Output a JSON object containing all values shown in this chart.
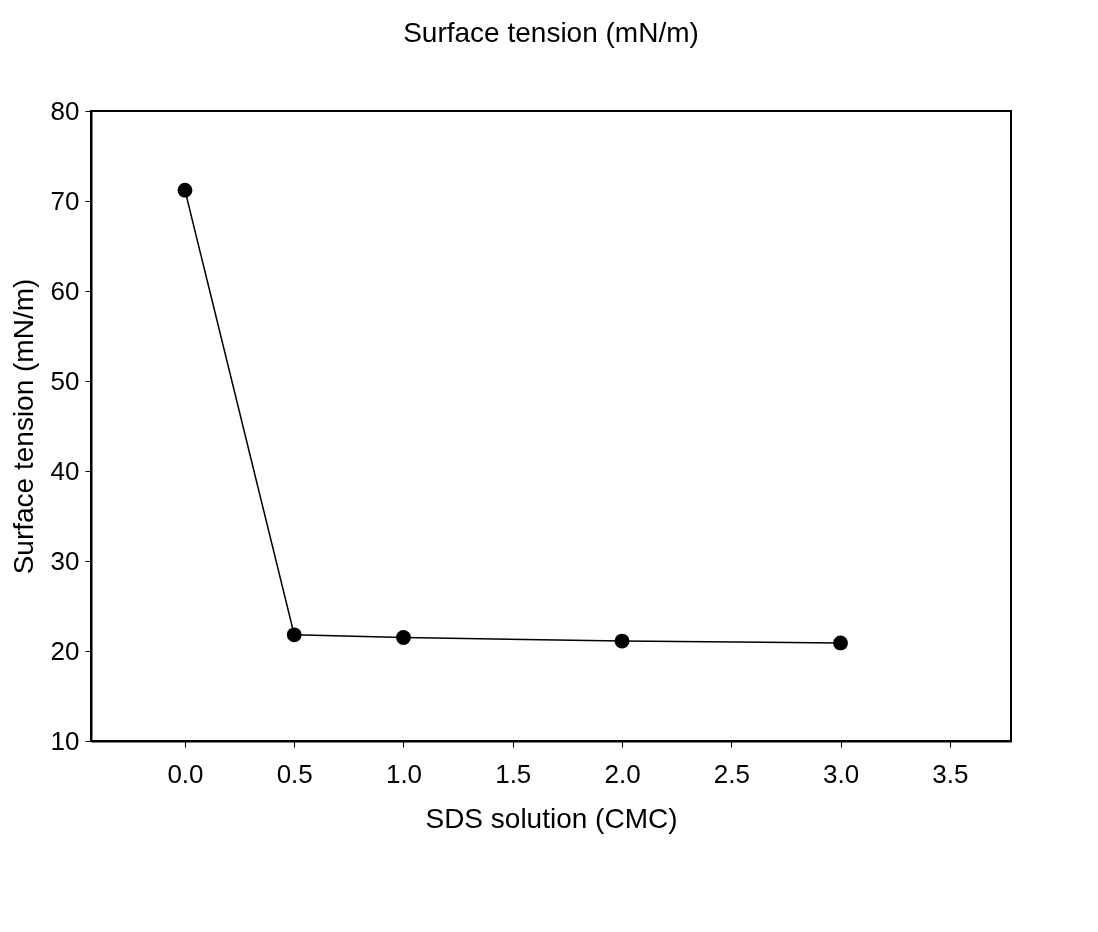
{
  "chart_data": {
    "type": "line",
    "title": "Surface tension (mN/m)",
    "xlabel": "SDS solution (CMC)",
    "ylabel": "Surface tension (mN/m)",
    "x": [
      0,
      0.5,
      1,
      2,
      3
    ],
    "series": [
      {
        "color": "#000000",
        "values": [
          71.2,
          21.8,
          21.5,
          21.1,
          20.9
        ]
      }
    ],
    "xlim": [
      -0.43,
      3.78
    ],
    "ylim": [
      10,
      80
    ],
    "xticks": [
      {
        "value": 0,
        "label": "0.0"
      },
      {
        "value": 0.5,
        "label": "0.5"
      },
      {
        "value": 1,
        "label": "1.0"
      },
      {
        "value": 1.5,
        "label": "1.5"
      },
      {
        "value": 2,
        "label": "2.0"
      },
      {
        "value": 2.5,
        "label": "2.5"
      },
      {
        "value": 3,
        "label": "3.0"
      },
      {
        "value": 3.5,
        "label": "3.5"
      }
    ],
    "yticks": [
      10,
      20,
      30,
      40,
      50,
      60,
      70,
      80
    ],
    "grid": false,
    "marker": "circle",
    "line_style": "solid"
  }
}
